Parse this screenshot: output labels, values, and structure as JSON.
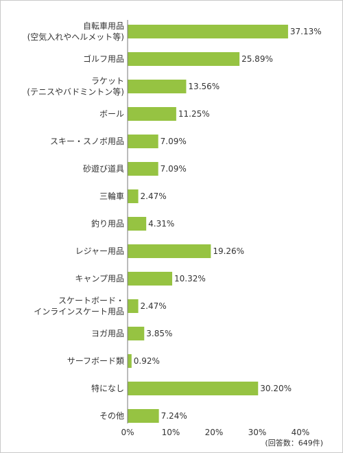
{
  "chart_data": {
    "type": "bar",
    "orientation": "horizontal",
    "categories": [
      [
        "自転車用品",
        "(空気入れやヘルメット等)"
      ],
      [
        "ゴルフ用品"
      ],
      [
        "ラケット",
        "(テニスやバドミントン等)"
      ],
      [
        "ボール"
      ],
      [
        "スキー・スノボ用品"
      ],
      [
        "砂遊び道具"
      ],
      [
        "三輪車"
      ],
      [
        "釣り用品"
      ],
      [
        "レジャー用品"
      ],
      [
        "キャンプ用品"
      ],
      [
        "スケートボード・",
        "インラインスケート用品"
      ],
      [
        "ヨガ用品"
      ],
      [
        "サーフボード類"
      ],
      [
        "特になし"
      ],
      [
        "その他"
      ]
    ],
    "values": [
      37.13,
      25.89,
      13.56,
      11.25,
      7.09,
      7.09,
      2.47,
      4.31,
      19.26,
      10.32,
      2.47,
      3.85,
      0.92,
      30.2,
      7.24
    ],
    "value_labels": [
      "37.13%",
      "25.89%",
      "13.56%",
      "11.25%",
      "7.09%",
      "7.09%",
      "2.47%",
      "4.31%",
      "19.26%",
      "10.32%",
      "2.47%",
      "3.85%",
      "0.92%",
      "30.20%",
      "7.24%"
    ],
    "xlim": [
      0,
      40
    ],
    "x_ticks": [
      "0%",
      "10%",
      "20%",
      "30%",
      "40%"
    ],
    "note": "(回答数：649件)",
    "bar_color": "#96c342",
    "axis_color": "#777777",
    "text_color": "#333333",
    "grid": false
  }
}
